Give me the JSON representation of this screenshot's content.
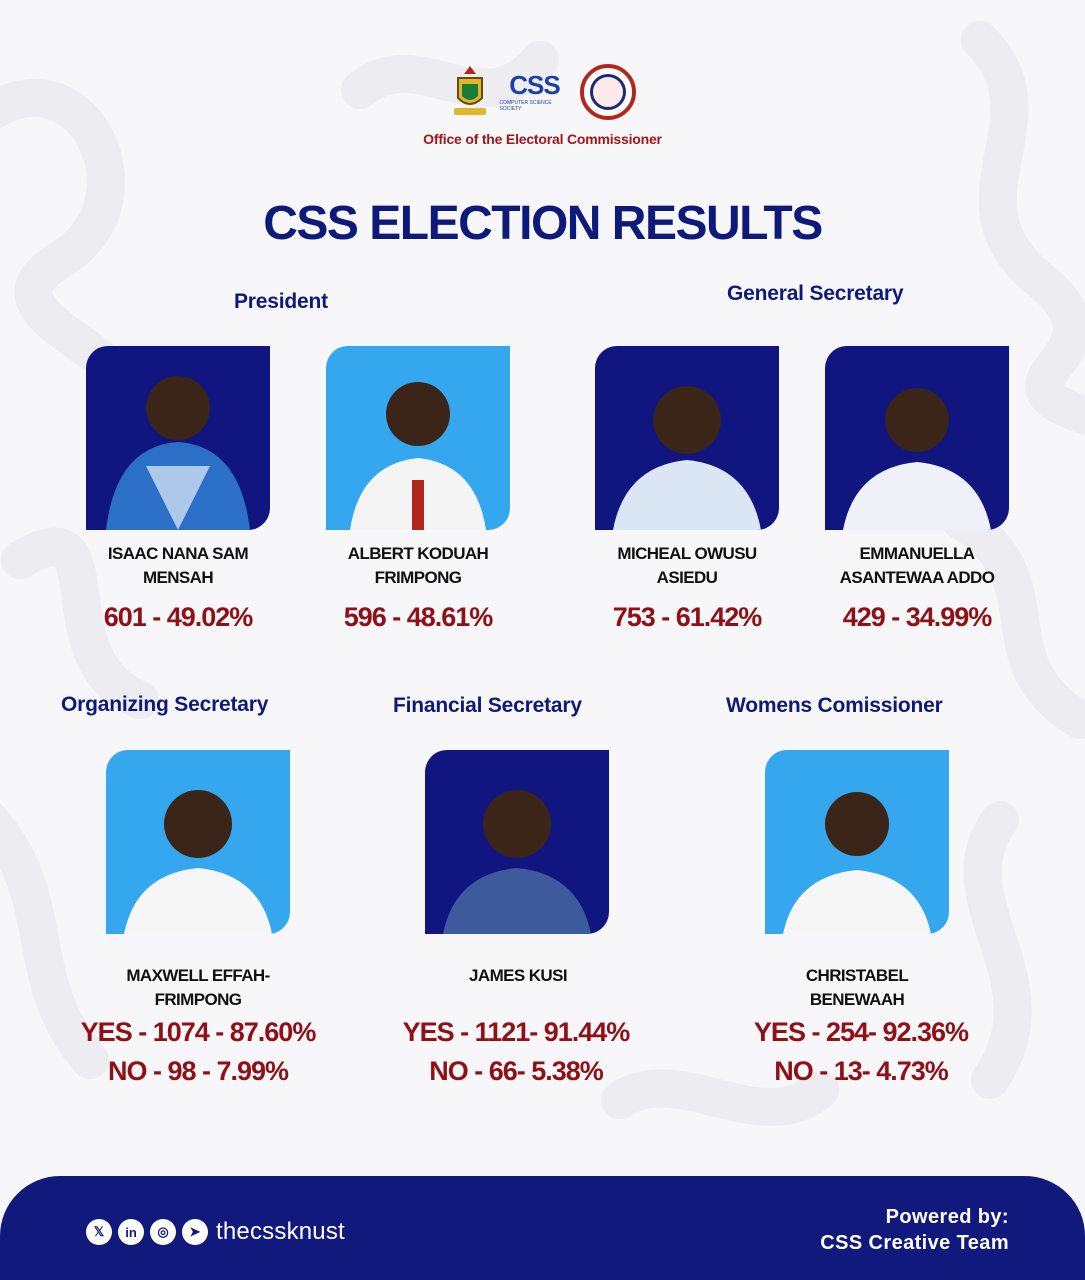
{
  "header": {
    "logos": [
      "knust-crest-icon",
      "css-logo-icon",
      "electoral-commission-seal-icon"
    ],
    "css_logo_text": "CSS",
    "css_logo_sub": "COMPUTER SCIENCE SOCIETY",
    "office": "Office of the Electoral Commissioner",
    "title": "CSS ELECTION RESULTS"
  },
  "sections": {
    "president": "President",
    "general_secretary": "General Secretary",
    "organizing_secretary": "Organizing Secretary",
    "financial_secretary": "Financial Secretary",
    "womens_commissioner": "Womens Comissioner"
  },
  "candidates": [
    {
      "name_line1": "ISAAC NANA SAM",
      "name_line2": "MENSAH",
      "result": "601 - 49.02%",
      "photo_bg": "dark"
    },
    {
      "name_line1": "ALBERT KODUAH",
      "name_line2": "FRIMPONG",
      "result": "596 - 48.61%",
      "photo_bg": "light"
    },
    {
      "name_line1": "MICHEAL OWUSU",
      "name_line2": "ASIEDU",
      "result": "753 - 61.42%",
      "photo_bg": "dark"
    },
    {
      "name_line1": "EMMANUELLA",
      "name_line2": "ASANTEWAA ADDO",
      "result": "429 - 34.99%",
      "photo_bg": "dark"
    },
    {
      "name_line1": "MAXWELL EFFAH-",
      "name_line2": "FRIMPONG",
      "yes": "YES - 1074 - 87.60%",
      "no": "NO - 98 - 7.99%",
      "photo_bg": "light"
    },
    {
      "name_line1": "JAMES KUSI",
      "name_line2": "",
      "yes": "YES - 1121- 91.44%",
      "no": "NO - 66- 5.38%",
      "photo_bg": "dark"
    },
    {
      "name_line1": "CHRISTABEL",
      "name_line2": "BENEWAAH",
      "yes": "YES - 254- 92.36%",
      "no": "NO - 13- 4.73%",
      "photo_bg": "light"
    }
  ],
  "footer": {
    "social_icons": [
      "x-icon",
      "linkedin-icon",
      "instagram-icon",
      "telegram-icon"
    ],
    "handle": "thecssknust",
    "powered_line1": "Powered by:",
    "powered_line2": "CSS Creative Team"
  },
  "colors": {
    "navy": "#0e1a7a",
    "maroon": "#8f1016",
    "photo_dark": "#11157f",
    "photo_light": "#35a7ee",
    "footer": "#111a7c"
  }
}
